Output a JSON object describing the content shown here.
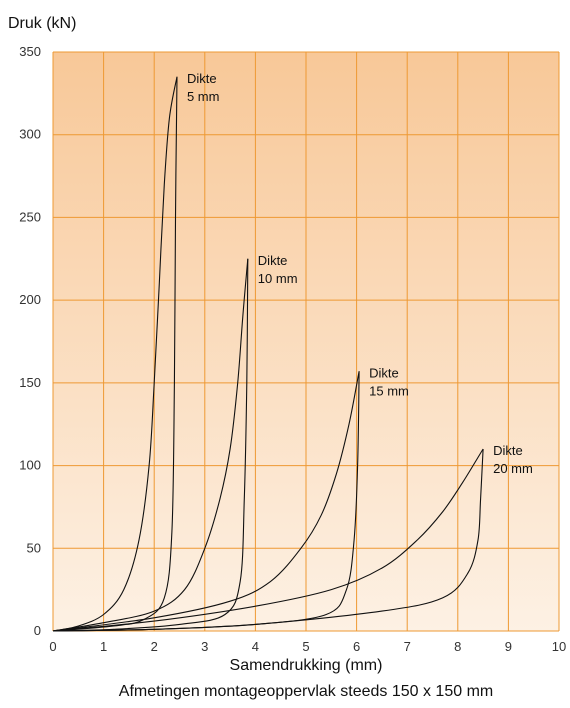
{
  "chart_data": {
    "type": "line",
    "ylabel": "Druk (kN)",
    "xlabel": "Samendrukking (mm)",
    "caption": "Afmetingen montageoppervlak steeds 150 x 150 mm",
    "xlim": [
      0,
      10
    ],
    "ylim": [
      0,
      350
    ],
    "xticks": [
      "0",
      "1",
      "2",
      "3",
      "4",
      "5",
      "6",
      "7",
      "8",
      "9",
      "10"
    ],
    "yticks": [
      "0",
      "50",
      "100",
      "150",
      "200",
      "250",
      "300",
      "350"
    ],
    "grid": true,
    "colors": {
      "grid": "#ee9933",
      "line": "#111111",
      "bg_top": "#f8c898",
      "bg_bottom": "#fdf1e4"
    },
    "series": [
      {
        "label_line1": "Dikte",
        "label_line2": "5 mm",
        "loading": [
          [
            0,
            0
          ],
          [
            0.5,
            3
          ],
          [
            1.0,
            10
          ],
          [
            1.4,
            25
          ],
          [
            1.7,
            55
          ],
          [
            1.9,
            100
          ],
          [
            2.0,
            150
          ],
          [
            2.1,
            210
          ],
          [
            2.2,
            270
          ],
          [
            2.3,
            310
          ],
          [
            2.45,
            335
          ]
        ],
        "unloading": [
          [
            2.45,
            335
          ],
          [
            2.42,
            250
          ],
          [
            2.4,
            150
          ],
          [
            2.35,
            60
          ],
          [
            2.2,
            20
          ],
          [
            1.8,
            7
          ],
          [
            1.2,
            3
          ],
          [
            0,
            0
          ]
        ]
      },
      {
        "label_line1": "Dikte",
        "label_line2": "10 mm",
        "loading": [
          [
            0,
            0
          ],
          [
            1.0,
            5
          ],
          [
            2.0,
            12
          ],
          [
            2.6,
            25
          ],
          [
            3.0,
            50
          ],
          [
            3.3,
            80
          ],
          [
            3.5,
            110
          ],
          [
            3.65,
            150
          ],
          [
            3.75,
            190
          ],
          [
            3.85,
            225
          ]
        ],
        "unloading": [
          [
            3.85,
            225
          ],
          [
            3.83,
            150
          ],
          [
            3.78,
            80
          ],
          [
            3.7,
            30
          ],
          [
            3.4,
            10
          ],
          [
            2.5,
            4
          ],
          [
            1.2,
            1
          ],
          [
            0,
            0
          ]
        ]
      },
      {
        "label_line1": "Dikte",
        "label_line2": "15 mm",
        "loading": [
          [
            0,
            0
          ],
          [
            2.0,
            8
          ],
          [
            3.5,
            18
          ],
          [
            4.3,
            30
          ],
          [
            4.9,
            50
          ],
          [
            5.3,
            70
          ],
          [
            5.6,
            95
          ],
          [
            5.85,
            125
          ],
          [
            6.05,
            157
          ]
        ],
        "unloading": [
          [
            6.05,
            157
          ],
          [
            6.02,
            100
          ],
          [
            5.95,
            55
          ],
          [
            5.8,
            25
          ],
          [
            5.4,
            10
          ],
          [
            4.0,
            4
          ],
          [
            2.0,
            1
          ],
          [
            0,
            0
          ]
        ]
      },
      {
        "label_line1": "Dikte",
        "label_line2": "20 mm",
        "loading": [
          [
            0,
            0
          ],
          [
            2.0,
            6
          ],
          [
            4.0,
            15
          ],
          [
            5.5,
            25
          ],
          [
            6.5,
            38
          ],
          [
            7.2,
            55
          ],
          [
            7.7,
            72
          ],
          [
            8.1,
            90
          ],
          [
            8.5,
            110
          ]
        ],
        "unloading": [
          [
            8.5,
            110
          ],
          [
            8.45,
            80
          ],
          [
            8.4,
            55
          ],
          [
            8.2,
            35
          ],
          [
            7.7,
            20
          ],
          [
            6.5,
            12
          ],
          [
            4.0,
            4
          ],
          [
            2.0,
            1
          ],
          [
            0,
            0
          ]
        ]
      }
    ]
  }
}
